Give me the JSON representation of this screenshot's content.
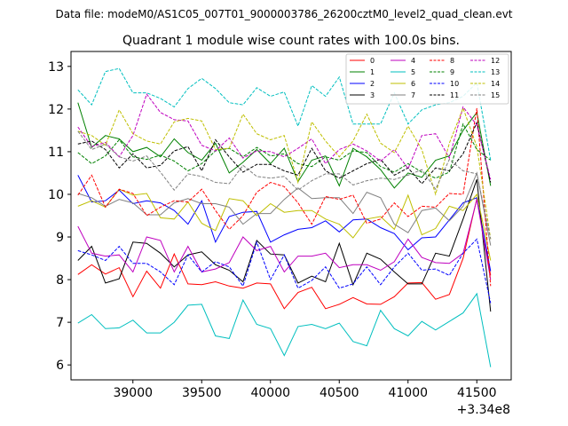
{
  "chart_data": {
    "type": "line",
    "suptitle": "Data file: modeM0/AS1C05_007T01_9000003786_26200cztM0_level2_quad_clean.evt",
    "title": "Quadrant 1 module wise count rates with 100.0s bins.",
    "xlabel": "",
    "ylabel": "",
    "x_offset_label": "+3.34e8",
    "xlim": [
      38550,
      41750
    ],
    "ylim": [
      5.65,
      13.35
    ],
    "xticks": [
      38500,
      39000,
      39500,
      40000,
      40500,
      41000,
      41500
    ],
    "yticks": [
      6,
      7,
      8,
      9,
      10,
      11,
      12,
      13
    ],
    "grid": false,
    "legend_position": "top-right",
    "x": [
      38600,
      38700,
      38800,
      38900,
      39000,
      39100,
      39200,
      39300,
      39400,
      39500,
      39600,
      39700,
      39800,
      39900,
      40000,
      40100,
      40200,
      40300,
      40400,
      40500,
      40600,
      40700,
      40800,
      40900,
      41000,
      41100,
      41200,
      41300,
      41400,
      41500,
      41600
    ],
    "series": [
      {
        "name": "0",
        "color": "#ff0000",
        "dash": "solid",
        "values": [
          8.12,
          8.35,
          8.13,
          8.28,
          7.6,
          8.2,
          7.8,
          8.6,
          7.9,
          7.88,
          7.95,
          7.85,
          7.8,
          7.92,
          7.9,
          7.32,
          7.7,
          7.82,
          7.32,
          7.42,
          7.58,
          7.43,
          7.42,
          7.6,
          7.92,
          7.93,
          7.54,
          7.65,
          8.5,
          9.9,
          8.1
        ]
      },
      {
        "name": "1",
        "color": "#008000",
        "dash": "solid",
        "values": [
          12.15,
          11.1,
          11.38,
          11.3,
          11.0,
          11.1,
          10.88,
          11.3,
          10.98,
          10.8,
          11.2,
          10.5,
          10.75,
          11.05,
          10.72,
          11.08,
          10.3,
          10.8,
          10.9,
          10.2,
          11.08,
          10.88,
          10.58,
          10.15,
          10.5,
          10.4,
          10.8,
          10.9,
          11.5,
          11.92,
          10.2
        ]
      },
      {
        "name": "2",
        "color": "#0000ff",
        "dash": "solid",
        "values": [
          10.45,
          9.82,
          9.85,
          10.1,
          9.78,
          9.85,
          9.8,
          9.62,
          9.3,
          9.85,
          8.88,
          9.48,
          9.58,
          9.6,
          8.88,
          9.05,
          9.18,
          9.22,
          9.38,
          9.12,
          9.4,
          9.42,
          9.22,
          9.08,
          8.7,
          8.98,
          9.0,
          9.4,
          9.8,
          9.92,
          8.2
        ]
      },
      {
        "name": "3",
        "color": "#000000",
        "dash": "solid",
        "values": [
          8.45,
          8.78,
          7.92,
          8.02,
          8.88,
          8.85,
          8.62,
          8.3,
          8.58,
          8.65,
          8.35,
          8.22,
          7.95,
          8.92,
          8.6,
          8.58,
          7.92,
          8.08,
          7.95,
          8.85,
          7.88,
          8.62,
          8.48,
          8.18,
          7.9,
          7.9,
          8.62,
          8.55,
          9.42,
          10.35,
          7.25
        ]
      },
      {
        "name": "4",
        "color": "#bf00bf",
        "dash": "solid",
        "values": [
          9.25,
          8.62,
          8.55,
          8.58,
          8.18,
          9.0,
          8.92,
          8.18,
          8.78,
          8.18,
          8.25,
          8.4,
          9.0,
          8.68,
          8.78,
          8.18,
          8.55,
          8.55,
          8.62,
          8.28,
          8.35,
          8.35,
          8.22,
          8.42,
          8.95,
          8.52,
          8.4,
          8.38,
          8.62,
          9.88,
          8.0
        ]
      },
      {
        "name": "5",
        "color": "#00bfbf",
        "dash": "solid",
        "values": [
          6.98,
          7.18,
          6.85,
          6.87,
          7.05,
          6.75,
          6.75,
          7.0,
          7.4,
          7.42,
          6.68,
          6.62,
          7.52,
          6.95,
          6.85,
          6.22,
          6.9,
          6.95,
          6.85,
          6.98,
          6.55,
          6.45,
          7.28,
          6.85,
          6.68,
          7.02,
          6.82,
          7.02,
          7.22,
          7.67,
          5.95
        ]
      },
      {
        "name": "6",
        "color": "#bfbf00",
        "dash": "solid",
        "values": [
          9.72,
          9.85,
          9.7,
          10.12,
          9.98,
          10.02,
          9.45,
          9.42,
          9.82,
          9.32,
          9.15,
          9.9,
          9.85,
          9.5,
          9.78,
          9.58,
          9.62,
          9.62,
          9.42,
          9.3,
          8.98,
          9.42,
          9.48,
          9.18,
          9.98,
          9.05,
          9.2,
          9.72,
          9.62,
          10.0,
          8.45
        ]
      },
      {
        "name": "7",
        "color": "#808080",
        "dash": "solid",
        "values": [
          10.02,
          9.92,
          9.72,
          9.88,
          9.8,
          9.52,
          9.52,
          9.8,
          9.9,
          9.78,
          9.78,
          9.7,
          9.3,
          9.55,
          9.55,
          9.88,
          10.15,
          9.9,
          9.92,
          9.92,
          9.55,
          10.05,
          9.92,
          9.3,
          9.1,
          9.62,
          9.68,
          9.38,
          9.72,
          10.5,
          8.8
        ]
      },
      {
        "name": "8",
        "color": "#ff0000",
        "dash": "dashed",
        "values": [
          9.98,
          10.45,
          9.7,
          10.12,
          10.02,
          9.5,
          9.7,
          9.85,
          9.82,
          10.12,
          9.62,
          9.18,
          9.5,
          10.05,
          10.28,
          10.18,
          9.8,
          9.3,
          9.95,
          9.88,
          9.98,
          9.32,
          9.42,
          9.8,
          9.48,
          9.72,
          9.7,
          10.02,
          10.0,
          12.02,
          7.85
        ]
      },
      {
        "name": "9",
        "color": "#008000",
        "dash": "dashed",
        "values": [
          10.98,
          10.72,
          10.9,
          11.28,
          10.88,
          10.82,
          10.92,
          10.78,
          10.55,
          10.72,
          11.02,
          11.08,
          10.88,
          11.1,
          10.9,
          10.95,
          10.72,
          10.65,
          10.88,
          10.8,
          11.02,
          10.98,
          10.65,
          10.52,
          10.72,
          10.52,
          10.38,
          10.52,
          11.65,
          11.05,
          10.8
        ]
      },
      {
        "name": "10",
        "color": "#0000ff",
        "dash": "dashed",
        "values": [
          8.68,
          8.58,
          8.45,
          8.78,
          8.38,
          8.38,
          8.18,
          7.88,
          8.58,
          8.18,
          8.42,
          8.3,
          7.85,
          8.88,
          8.0,
          8.58,
          7.8,
          7.98,
          8.3,
          7.8,
          7.9,
          8.3,
          7.88,
          8.3,
          8.62,
          8.22,
          8.25,
          8.1,
          8.62,
          8.95,
          7.45
        ]
      },
      {
        "name": "11",
        "color": "#000000",
        "dash": "dashed",
        "values": [
          11.18,
          11.25,
          11.05,
          10.62,
          10.95,
          10.62,
          10.68,
          11.02,
          11.12,
          10.55,
          11.28,
          10.88,
          10.52,
          10.7,
          10.7,
          10.55,
          10.45,
          11.08,
          10.55,
          10.38,
          10.55,
          10.72,
          10.82,
          10.45,
          10.62,
          10.25,
          10.62,
          10.55,
          10.95,
          11.68,
          10.28
        ]
      },
      {
        "name": "12",
        "color": "#bf00bf",
        "dash": "dashed",
        "values": [
          11.58,
          11.12,
          11.22,
          10.88,
          11.38,
          12.35,
          11.92,
          11.75,
          11.72,
          11.15,
          11.02,
          11.32,
          10.85,
          11.02,
          11.0,
          10.88,
          11.08,
          11.3,
          10.72,
          11.05,
          11.18,
          11.02,
          10.78,
          11.05,
          10.6,
          11.38,
          11.42,
          10.85,
          12.05,
          11.62,
          10.35
        ]
      },
      {
        "name": "13",
        "color": "#00bfbf",
        "dash": "dashed",
        "values": [
          12.45,
          12.1,
          12.88,
          12.95,
          12.38,
          12.38,
          12.25,
          12.05,
          12.48,
          12.72,
          12.48,
          12.15,
          12.1,
          12.5,
          12.3,
          12.4,
          11.6,
          12.55,
          12.3,
          12.75,
          11.65,
          11.65,
          11.65,
          12.38,
          11.65,
          11.98,
          12.1,
          12.15,
          12.3,
          12.62,
          10.8
        ]
      },
      {
        "name": "14",
        "color": "#bfbf00",
        "dash": "dashed",
        "values": [
          11.48,
          11.38,
          11.15,
          11.98,
          11.42,
          11.25,
          11.18,
          11.7,
          11.78,
          11.72,
          11.05,
          11.08,
          11.88,
          11.42,
          11.28,
          11.38,
          10.28,
          11.7,
          11.25,
          10.88,
          11.25,
          11.88,
          11.2,
          10.98,
          11.6,
          11.05,
          10.0,
          11.2,
          12.02,
          11.12,
          8.95
        ]
      },
      {
        "name": "15",
        "color": "#808080",
        "dash": "dashed",
        "values": [
          11.48,
          11.05,
          11.18,
          10.88,
          10.78,
          10.9,
          10.52,
          10.1,
          10.48,
          10.42,
          10.28,
          10.25,
          10.68,
          10.42,
          10.38,
          10.42,
          10.1,
          10.32,
          10.48,
          10.48,
          10.22,
          10.32,
          10.38,
          10.35,
          10.45,
          10.58,
          10.12,
          10.82,
          10.55,
          10.48,
          8.95
        ]
      }
    ]
  }
}
